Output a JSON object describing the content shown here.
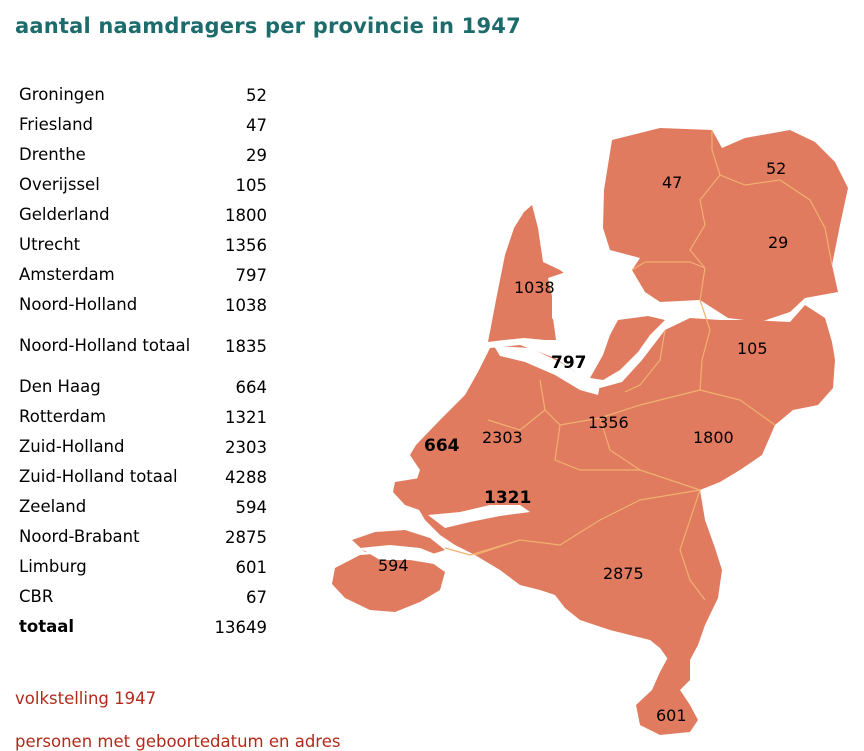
{
  "title": "aantal naamdragers per provincie in 1947",
  "rows": [
    {
      "name": "Groningen",
      "value": "52"
    },
    {
      "name": "Friesland",
      "value": "47"
    },
    {
      "name": "Drenthe",
      "value": "29"
    },
    {
      "name": "Overijssel",
      "value": "105"
    },
    {
      "name": "Gelderland",
      "value": "1800"
    },
    {
      "name": "Utrecht",
      "value": "1356"
    },
    {
      "name": "Amsterdam",
      "value": "797"
    },
    {
      "name": "Noord-Holland",
      "value": "1038"
    },
    {
      "name": "Noord-Holland totaal",
      "value": "1835"
    },
    {
      "name": "Den Haag",
      "value": "664"
    },
    {
      "name": "Rotterdam",
      "value": "1321"
    },
    {
      "name": "Zuid-Holland",
      "value": "2303"
    },
    {
      "name": "Zuid-Holland totaal",
      "value": "4288"
    },
    {
      "name": "Zeeland",
      "value": "594"
    },
    {
      "name": "Noord-Brabant",
      "value": "2875"
    },
    {
      "name": "Limburg",
      "value": "601"
    },
    {
      "name": "CBR",
      "value": "67"
    },
    {
      "name": "totaal",
      "value": "13649"
    }
  ],
  "map_labels": {
    "groningen": "52",
    "friesland": "47",
    "drenthe": "29",
    "overijssel": "105",
    "gelderland": "1800",
    "utrecht": "1356",
    "amsterdam": "797",
    "noord_holland": "1038",
    "den_haag": "664",
    "rotterdam": "1321",
    "zuid_holland": "2303",
    "zeeland": "594",
    "noord_brabant": "2875",
    "limburg": "601"
  },
  "notes": {
    "source": "volkstelling 1947",
    "footer": "personen met geboortedatum en adres"
  },
  "colors": {
    "title": "#1e6b6b",
    "land": "#e07b5f",
    "border": "#f0b070",
    "note": "#b22a1a"
  }
}
